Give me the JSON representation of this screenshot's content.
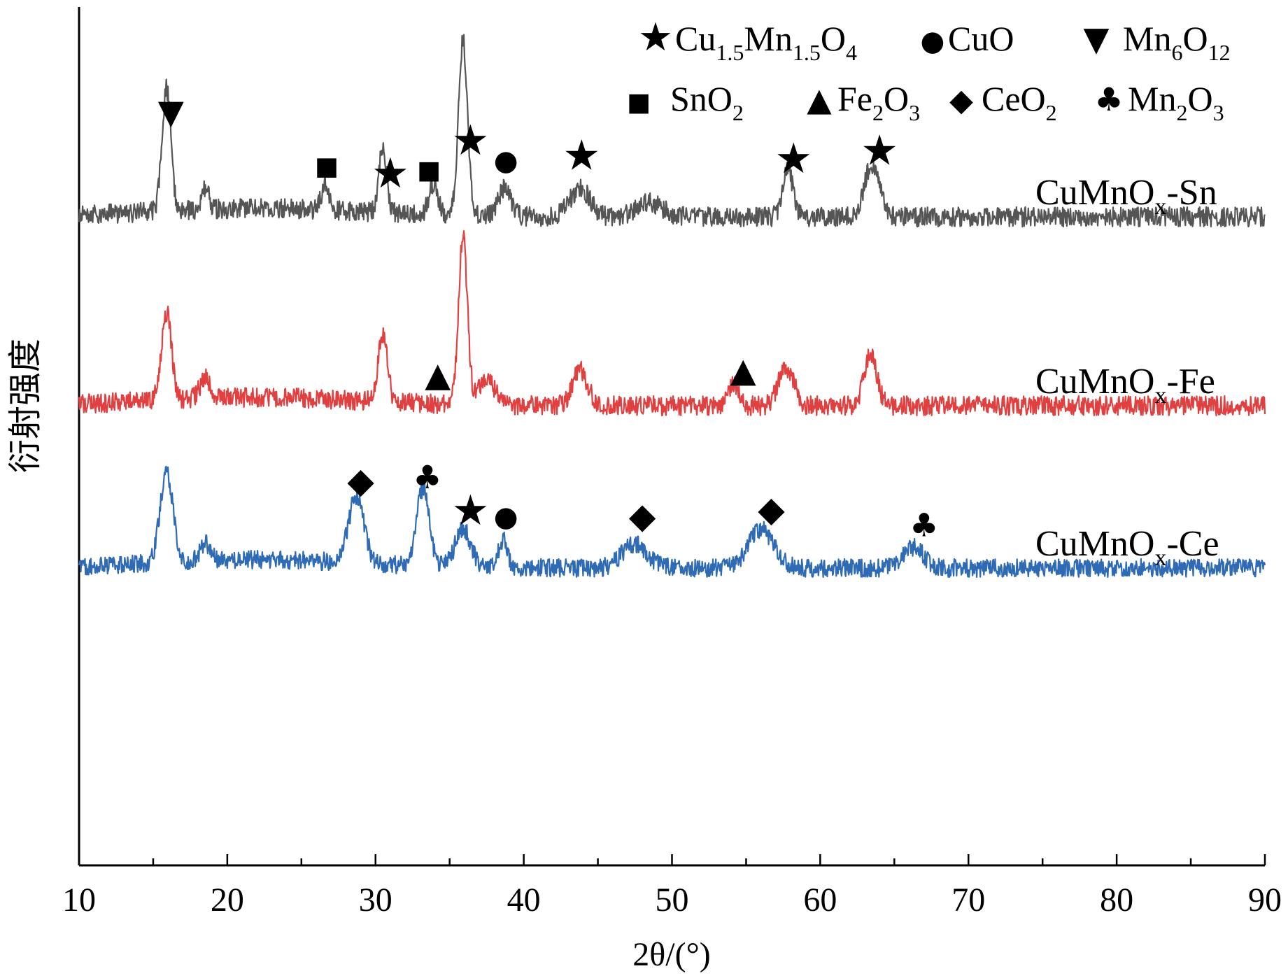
{
  "chart_data": {
    "type": "line",
    "xlabel": "2θ/(°)",
    "ylabel": "衍射强度",
    "xlim": [
      10,
      90
    ],
    "x_ticks": [
      "10",
      "20",
      "30",
      "40",
      "50",
      "60",
      "70",
      "80",
      "90"
    ],
    "grid": false,
    "y_tick_labels": false,
    "legend": {
      "placement": "top-right",
      "entries": [
        {
          "symbol": "star",
          "glyph": "★",
          "base": "Cu",
          "sub1": "1.5",
          "mid": "Mn",
          "sub2": "1.5",
          "tail": "O",
          "sub3": "4"
        },
        {
          "symbol": "circle",
          "glyph": "●",
          "text": "CuO"
        },
        {
          "symbol": "triangle-down",
          "glyph": "▼",
          "base": "Mn",
          "sub1": "6",
          "mid": "O",
          "sub2": "12"
        },
        {
          "symbol": "square",
          "glyph": "■",
          "base": "SnO",
          "sub1": "2"
        },
        {
          "symbol": "triangle-up",
          "glyph": "▲",
          "base": "Fe",
          "sub1": "2",
          "mid": "O",
          "sub2": "3"
        },
        {
          "symbol": "diamond",
          "glyph": "◆",
          "base": "CeO",
          "sub1": "2"
        },
        {
          "symbol": "club",
          "glyph": "♣",
          "base": "Mn",
          "sub1": "2",
          "mid": "O",
          "sub2": "3"
        }
      ]
    },
    "series": [
      {
        "name": "CuMnOx-Sn",
        "label_base": "CuMnO",
        "label_sub": "x",
        "label_tail": "-Sn",
        "color": "#555555",
        "baseline": 310,
        "noise": 14,
        "peaks": [
          {
            "x": 15.9,
            "h": 175,
            "w": 0.35
          },
          {
            "x": 18.5,
            "h": 30,
            "w": 0.3
          },
          {
            "x": 26.6,
            "h": 35,
            "w": 0.3
          },
          {
            "x": 30.5,
            "h": 95,
            "w": 0.3
          },
          {
            "x": 33.9,
            "h": 45,
            "w": 0.35
          },
          {
            "x": 35.9,
            "h": 250,
            "w": 0.35
          },
          {
            "x": 38.7,
            "h": 40,
            "w": 0.5
          },
          {
            "x": 43.8,
            "h": 40,
            "w": 0.8
          },
          {
            "x": 48.5,
            "h": 20,
            "w": 1.0
          },
          {
            "x": 57.8,
            "h": 70,
            "w": 0.4
          },
          {
            "x": 63.5,
            "h": 75,
            "w": 0.6
          }
        ]
      },
      {
        "name": "CuMnOx-Fe",
        "label_base": "CuMnO",
        "label_sub": "x",
        "label_tail": "-Fe",
        "color": "#e04040",
        "baseline": 580,
        "noise": 14,
        "peaks": [
          {
            "x": 15.9,
            "h": 125,
            "w": 0.4
          },
          {
            "x": 18.5,
            "h": 30,
            "w": 0.4
          },
          {
            "x": 30.5,
            "h": 100,
            "w": 0.35
          },
          {
            "x": 35.9,
            "h": 240,
            "w": 0.35
          },
          {
            "x": 37.5,
            "h": 40,
            "w": 0.6
          },
          {
            "x": 43.8,
            "h": 50,
            "w": 0.6
          },
          {
            "x": 54.2,
            "h": 30,
            "w": 0.4
          },
          {
            "x": 57.7,
            "h": 55,
            "w": 0.6
          },
          {
            "x": 63.4,
            "h": 75,
            "w": 0.5
          }
        ]
      },
      {
        "name": "CuMnOx-Ce",
        "label_base": "CuMnO",
        "label_sub": "x",
        "label_tail": "-Ce",
        "color": "#2f6bb5",
        "baseline": 812,
        "noise": 13,
        "peaks": [
          {
            "x": 15.9,
            "h": 130,
            "w": 0.5
          },
          {
            "x": 18.5,
            "h": 25,
            "w": 0.4
          },
          {
            "x": 28.7,
            "h": 95,
            "w": 0.6
          },
          {
            "x": 33.2,
            "h": 110,
            "w": 0.5
          },
          {
            "x": 35.9,
            "h": 55,
            "w": 0.6
          },
          {
            "x": 38.6,
            "h": 40,
            "w": 0.35
          },
          {
            "x": 47.5,
            "h": 35,
            "w": 1.0
          },
          {
            "x": 56.0,
            "h": 55,
            "w": 1.0
          },
          {
            "x": 66.3,
            "h": 30,
            "w": 0.8
          }
        ]
      }
    ],
    "annotations": [
      {
        "symbol": "triangle-down",
        "glyph": "▼",
        "x": 16.2,
        "series": "CuMnOx-Sn"
      },
      {
        "symbol": "star",
        "glyph": "★",
        "x": 36.4,
        "series": "CuMnOx-Sn"
      },
      {
        "symbol": "star",
        "glyph": "★",
        "x": 31.0,
        "series": "CuMnOx-Sn"
      },
      {
        "symbol": "square",
        "glyph": "■",
        "x": 26.7,
        "series": "CuMnOx-Sn"
      },
      {
        "symbol": "square",
        "glyph": "■",
        "x": 33.6,
        "series": "CuMnOx-Sn"
      },
      {
        "symbol": "circle",
        "glyph": "●",
        "x": 38.8,
        "series": "CuMnOx-Sn"
      },
      {
        "symbol": "star",
        "glyph": "★",
        "x": 43.9,
        "series": "CuMnOx-Sn"
      },
      {
        "symbol": "star",
        "glyph": "★",
        "x": 58.2,
        "series": "CuMnOx-Sn"
      },
      {
        "symbol": "star",
        "glyph": "★",
        "x": 64.0,
        "series": "CuMnOx-Sn"
      },
      {
        "symbol": "triangle-up",
        "glyph": "▲",
        "x": 34.2,
        "series": "CuMnOx-Fe"
      },
      {
        "symbol": "triangle-up",
        "glyph": "▲",
        "x": 54.8,
        "series": "CuMnOx-Fe"
      },
      {
        "symbol": "diamond",
        "glyph": "◆",
        "x": 29.0,
        "series": "CuMnOx-Ce"
      },
      {
        "symbol": "club",
        "glyph": "♣",
        "x": 33.5,
        "series": "CuMnOx-Ce"
      },
      {
        "symbol": "star",
        "glyph": "★",
        "x": 36.4,
        "series": "CuMnOx-Ce"
      },
      {
        "symbol": "circle",
        "glyph": "●",
        "x": 38.8,
        "series": "CuMnOx-Ce"
      },
      {
        "symbol": "diamond",
        "glyph": "◆",
        "x": 48.0,
        "series": "CuMnOx-Ce"
      },
      {
        "symbol": "diamond",
        "glyph": "◆",
        "x": 56.7,
        "series": "CuMnOx-Ce"
      },
      {
        "symbol": "club",
        "glyph": "♣",
        "x": 67.0,
        "series": "CuMnOx-Ce"
      }
    ]
  }
}
